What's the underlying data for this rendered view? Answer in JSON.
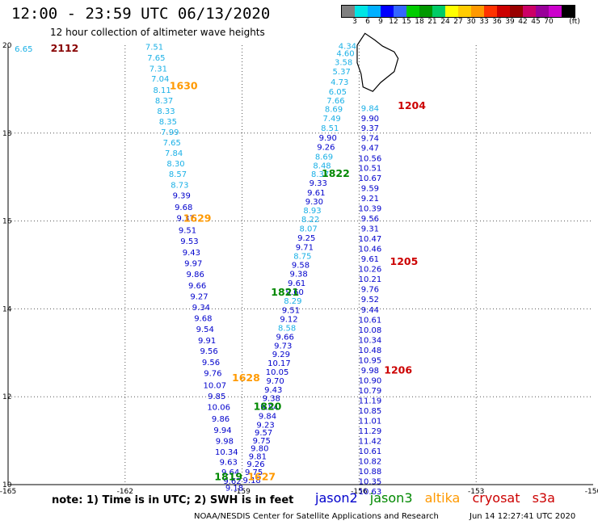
{
  "header": {
    "title": "12:00 - 23:59 UTC 06/13/2020",
    "subtitle": "12 hour collection of altimeter wave heights"
  },
  "color_scale": {
    "unit_label": "(ft)",
    "colors": [
      "#808080",
      "#00e5e5",
      "#00b0ff",
      "#0000ff",
      "#3366ff",
      "#00cc00",
      "#009900",
      "#00cc66",
      "#ffff00",
      "#ffcc00",
      "#ff9900",
      "#ff3300",
      "#cc0000",
      "#990000",
      "#cc0066",
      "#990099",
      "#cc00cc",
      "#000000"
    ],
    "labels": [
      "3",
      "6",
      "9",
      "12",
      "15",
      "18",
      "21",
      "24",
      "27",
      "30",
      "33",
      "36",
      "39",
      "42",
      "45",
      "70"
    ]
  },
  "axes": {
    "x_ticks": [
      "-165",
      "-162",
      "-159",
      "-156",
      "-153",
      "-150"
    ],
    "y_ticks": [
      "10",
      "12",
      "14",
      "16",
      "18",
      "20"
    ]
  },
  "colors": {
    "jason2": "#0000cc",
    "jason3": "#008800",
    "altika": "#ff9900",
    "cryosat": "#cc0000",
    "s3a": "#cc0000",
    "light": "#1ab0e6",
    "dark": "#0000cc",
    "grid": "#555555"
  },
  "pass_labels": [
    {
      "text": "2112",
      "color": "#880000",
      "lon": -163.55,
      "lat": 19.85
    },
    {
      "text": "1630",
      "color": "#ff9900",
      "lon": -160.5,
      "lat": 19.0
    },
    {
      "text": "1629",
      "color": "#ff9900",
      "lon": -160.15,
      "lat": 15.98
    },
    {
      "text": "1628",
      "color": "#ff9900",
      "lon": -158.9,
      "lat": 12.35
    },
    {
      "text": "1627",
      "color": "#ff9900",
      "lon": -158.5,
      "lat": 10.1
    },
    {
      "text": "1204",
      "color": "#cc0000",
      "lon": -154.65,
      "lat": 18.55
    },
    {
      "text": "1205",
      "color": "#cc0000",
      "lon": -154.85,
      "lat": 15.0
    },
    {
      "text": "1206",
      "color": "#cc0000",
      "lon": -155.0,
      "lat": 12.53
    },
    {
      "text": "1822",
      "color": "#008800",
      "lon": -156.6,
      "lat": 17.0
    },
    {
      "text": "1821",
      "color": "#008800",
      "lon": -157.9,
      "lat": 14.3
    },
    {
      "text": "1820",
      "color": "#008800",
      "lon": -158.35,
      "lat": 11.7
    },
    {
      "text": "1819",
      "color": "#008800",
      "lon": -159.35,
      "lat": 10.1
    }
  ],
  "tracks": [
    {
      "name": "track-1630-1629",
      "color": "#1ab0e6",
      "points": [
        {
          "lon": -161.25,
          "lat": 19.9,
          "v": "7.51"
        },
        {
          "lon": -161.2,
          "lat": 19.65,
          "v": "7.65"
        },
        {
          "lon": -161.15,
          "lat": 19.4,
          "v": "7.31"
        },
        {
          "lon": -161.1,
          "lat": 19.17,
          "v": "7.04"
        },
        {
          "lon": -161.05,
          "lat": 18.92,
          "v": "8.11"
        },
        {
          "lon": -161.0,
          "lat": 18.68,
          "v": "8.37"
        },
        {
          "lon": -160.95,
          "lat": 18.44,
          "v": "8.33"
        },
        {
          "lon": -160.9,
          "lat": 18.2,
          "v": "8.35"
        },
        {
          "lon": -160.85,
          "lat": 17.96,
          "v": "7.99"
        },
        {
          "lon": -160.8,
          "lat": 17.72,
          "v": "7.65"
        },
        {
          "lon": -160.75,
          "lat": 17.48,
          "v": "7.84"
        },
        {
          "lon": -160.7,
          "lat": 17.24,
          "v": "8.30"
        },
        {
          "lon": -160.65,
          "lat": 17.0,
          "v": "8.57"
        },
        {
          "lon": -160.6,
          "lat": 16.76,
          "v": "8.73"
        },
        {
          "lon": -160.55,
          "lat": 16.52,
          "v": "9.39",
          "c": "#0000cc"
        },
        {
          "lon": -160.5,
          "lat": 16.25,
          "v": "9.68",
          "c": "#0000cc"
        },
        {
          "lon": -160.45,
          "lat": 16.0,
          "v": "9.37",
          "c": "#0000cc"
        },
        {
          "lon": -160.4,
          "lat": 15.73,
          "v": "9.51",
          "c": "#0000cc"
        },
        {
          "lon": -160.35,
          "lat": 15.48,
          "v": "9.53",
          "c": "#0000cc"
        },
        {
          "lon": -160.3,
          "lat": 15.22,
          "v": "9.43",
          "c": "#0000cc"
        },
        {
          "lon": -160.25,
          "lat": 14.97,
          "v": "9.97",
          "c": "#0000cc"
        },
        {
          "lon": -160.2,
          "lat": 14.72,
          "v": "9.86",
          "c": "#0000cc"
        },
        {
          "lon": -160.15,
          "lat": 14.47,
          "v": "9.66",
          "c": "#0000cc"
        },
        {
          "lon": -160.1,
          "lat": 14.22,
          "v": "9.27",
          "c": "#0000cc"
        },
        {
          "lon": -160.05,
          "lat": 13.97,
          "v": "9.34",
          "c": "#0000cc"
        },
        {
          "lon": -160.0,
          "lat": 13.72,
          "v": "9.68",
          "c": "#0000cc"
        },
        {
          "lon": -159.95,
          "lat": 13.47,
          "v": "9.54",
          "c": "#0000cc"
        },
        {
          "lon": -159.9,
          "lat": 13.22,
          "v": "9.91",
          "c": "#0000cc"
        },
        {
          "lon": -159.85,
          "lat": 12.98,
          "v": "9.56",
          "c": "#0000cc"
        },
        {
          "lon": -159.8,
          "lat": 12.72,
          "v": "9.56",
          "c": "#0000cc"
        },
        {
          "lon": -159.75,
          "lat": 12.47,
          "v": "9.76",
          "c": "#0000cc"
        },
        {
          "lon": -159.7,
          "lat": 12.2,
          "v": "10.07",
          "c": "#0000cc"
        },
        {
          "lon": -159.65,
          "lat": 11.95,
          "v": "9.85",
          "c": "#0000cc"
        },
        {
          "lon": -159.6,
          "lat": 11.7,
          "v": "10.06",
          "c": "#0000cc"
        },
        {
          "lon": -159.55,
          "lat": 11.43,
          "v": "9.86",
          "c": "#0000cc"
        },
        {
          "lon": -159.5,
          "lat": 11.18,
          "v": "9.94",
          "c": "#0000cc"
        },
        {
          "lon": -159.45,
          "lat": 10.93,
          "v": "9.98",
          "c": "#0000cc"
        },
        {
          "lon": -159.4,
          "lat": 10.68,
          "v": "10.34",
          "c": "#0000cc"
        },
        {
          "lon": -159.35,
          "lat": 10.45,
          "v": "9.63",
          "c": "#0000cc"
        },
        {
          "lon": -159.3,
          "lat": 10.22,
          "v": "9.64",
          "c": "#0000cc"
        },
        {
          "lon": -159.25,
          "lat": 10.02,
          "v": "9.62",
          "c": "#0000cc"
        },
        {
          "lon": -159.2,
          "lat": 9.86,
          "v": "9.18",
          "c": "#0000cc"
        }
      ]
    },
    {
      "name": "track-1822-1819",
      "color": "#0000cc",
      "points": [
        {
          "lon": -156.3,
          "lat": 19.92,
          "v": "4.34",
          "c": "#1ab0e6"
        },
        {
          "lon": -156.35,
          "lat": 19.75,
          "v": "4.60",
          "c": "#1ab0e6"
        },
        {
          "lon": -156.4,
          "lat": 19.55,
          "v": "3.58",
          "c": "#1ab0e6"
        },
        {
          "lon": -156.45,
          "lat": 19.34,
          "v": "5.37",
          "c": "#1ab0e6"
        },
        {
          "lon": -156.5,
          "lat": 19.1,
          "v": "4.73",
          "c": "#1ab0e6"
        },
        {
          "lon": -156.55,
          "lat": 18.88,
          "v": "6.05",
          "c": "#1ab0e6"
        },
        {
          "lon": -156.6,
          "lat": 18.68,
          "v": "7.66",
          "c": "#1ab0e6"
        },
        {
          "lon": -156.65,
          "lat": 18.48,
          "v": "8.69",
          "c": "#1ab0e6"
        },
        {
          "lon": -156.7,
          "lat": 18.27,
          "v": "7.49",
          "c": "#1ab0e6"
        },
        {
          "lon": -156.75,
          "lat": 18.05,
          "v": "8.51",
          "c": "#1ab0e6"
        },
        {
          "lon": -156.8,
          "lat": 17.83,
          "v": "9.90"
        },
        {
          "lon": -156.85,
          "lat": 17.62,
          "v": "9.26"
        },
        {
          "lon": -156.9,
          "lat": 17.4,
          "v": "8.69",
          "c": "#1ab0e6"
        },
        {
          "lon": -156.95,
          "lat": 17.2,
          "v": "8.48",
          "c": "#1ab0e6"
        },
        {
          "lon": -157.0,
          "lat": 17.0,
          "v": "8.37",
          "c": "#1ab0e6"
        },
        {
          "lon": -157.05,
          "lat": 16.8,
          "v": "9.33"
        },
        {
          "lon": -157.1,
          "lat": 16.58,
          "v": "9.61"
        },
        {
          "lon": -157.15,
          "lat": 16.38,
          "v": "9.30"
        },
        {
          "lon": -157.2,
          "lat": 16.18,
          "v": "8.93",
          "c": "#1ab0e6"
        },
        {
          "lon": -157.25,
          "lat": 15.97,
          "v": "8.22",
          "c": "#1ab0e6"
        },
        {
          "lon": -157.3,
          "lat": 15.76,
          "v": "8.07",
          "c": "#1ab0e6"
        },
        {
          "lon": -157.35,
          "lat": 15.55,
          "v": "9.25"
        },
        {
          "lon": -157.4,
          "lat": 15.34,
          "v": "9.71"
        },
        {
          "lon": -157.45,
          "lat": 15.14,
          "v": "8.75",
          "c": "#1ab0e6"
        },
        {
          "lon": -157.5,
          "lat": 14.94,
          "v": "9.58"
        },
        {
          "lon": -157.55,
          "lat": 14.73,
          "v": "9.38"
        },
        {
          "lon": -157.6,
          "lat": 14.52,
          "v": "9.61"
        },
        {
          "lon": -157.65,
          "lat": 14.32,
          "v": "9.60"
        },
        {
          "lon": -157.7,
          "lat": 14.12,
          "v": "8.29",
          "c": "#1ab0e6"
        },
        {
          "lon": -157.75,
          "lat": 13.91,
          "v": "9.51"
        },
        {
          "lon": -157.8,
          "lat": 13.7,
          "v": "9.12"
        },
        {
          "lon": -157.85,
          "lat": 13.5,
          "v": "8.58",
          "c": "#1ab0e6"
        },
        {
          "lon": -157.9,
          "lat": 13.3,
          "v": "9.66"
        },
        {
          "lon": -157.95,
          "lat": 13.1,
          "v": "9.73"
        },
        {
          "lon": -158.0,
          "lat": 12.9,
          "v": "9.29"
        },
        {
          "lon": -158.05,
          "lat": 12.7,
          "v": "10.17"
        },
        {
          "lon": -158.1,
          "lat": 12.5,
          "v": "10.05"
        },
        {
          "lon": -158.15,
          "lat": 12.3,
          "v": "9.70"
        },
        {
          "lon": -158.2,
          "lat": 12.1,
          "v": "9.43"
        },
        {
          "lon": -158.25,
          "lat": 11.9,
          "v": "9.38"
        },
        {
          "lon": -158.3,
          "lat": 11.7,
          "v": "9.84"
        },
        {
          "lon": -158.35,
          "lat": 11.5,
          "v": "9.84"
        },
        {
          "lon": -158.4,
          "lat": 11.3,
          "v": "9.23"
        },
        {
          "lon": -158.45,
          "lat": 11.12,
          "v": "9.57"
        },
        {
          "lon": -158.5,
          "lat": 10.94,
          "v": "9.75"
        },
        {
          "lon": -158.55,
          "lat": 10.76,
          "v": "9.80"
        },
        {
          "lon": -158.6,
          "lat": 10.58,
          "v": "9.81"
        },
        {
          "lon": -158.65,
          "lat": 10.4,
          "v": "9.26"
        },
        {
          "lon": -158.7,
          "lat": 10.22,
          "v": "9.75"
        },
        {
          "lon": -158.75,
          "lat": 10.04,
          "v": "9.18"
        }
      ]
    },
    {
      "name": "track-1204-1206",
      "color": "#0000cc",
      "points": [
        {
          "lon": -155.72,
          "lat": 18.5,
          "v": "9.84",
          "c": "#1ab0e6"
        },
        {
          "lon": -155.72,
          "lat": 18.27,
          "v": "9.90"
        },
        {
          "lon": -155.72,
          "lat": 18.05,
          "v": "9.37"
        },
        {
          "lon": -155.72,
          "lat": 17.82,
          "v": "9.74"
        },
        {
          "lon": -155.72,
          "lat": 17.6,
          "v": "9.47"
        },
        {
          "lon": -155.72,
          "lat": 17.36,
          "v": "10.56"
        },
        {
          "lon": -155.72,
          "lat": 17.14,
          "v": "10.51"
        },
        {
          "lon": -155.72,
          "lat": 16.91,
          "v": "10.67"
        },
        {
          "lon": -155.72,
          "lat": 16.68,
          "v": "9.59"
        },
        {
          "lon": -155.72,
          "lat": 16.45,
          "v": "9.21"
        },
        {
          "lon": -155.72,
          "lat": 16.22,
          "v": "10.39"
        },
        {
          "lon": -155.72,
          "lat": 15.99,
          "v": "9.56"
        },
        {
          "lon": -155.72,
          "lat": 15.76,
          "v": "9.31"
        },
        {
          "lon": -155.72,
          "lat": 15.53,
          "v": "10.47"
        },
        {
          "lon": -155.72,
          "lat": 15.3,
          "v": "10.46"
        },
        {
          "lon": -155.72,
          "lat": 15.07,
          "v": "9.61"
        },
        {
          "lon": -155.72,
          "lat": 14.84,
          "v": "10.26"
        },
        {
          "lon": -155.72,
          "lat": 14.61,
          "v": "10.21"
        },
        {
          "lon": -155.72,
          "lat": 14.38,
          "v": "9.76"
        },
        {
          "lon": -155.72,
          "lat": 14.15,
          "v": "9.52"
        },
        {
          "lon": -155.72,
          "lat": 13.92,
          "v": "9.44"
        },
        {
          "lon": -155.72,
          "lat": 13.69,
          "v": "10.61"
        },
        {
          "lon": -155.72,
          "lat": 13.46,
          "v": "10.08"
        },
        {
          "lon": -155.72,
          "lat": 13.23,
          "v": "10.34"
        },
        {
          "lon": -155.72,
          "lat": 13.0,
          "v": "10.48"
        },
        {
          "lon": -155.72,
          "lat": 12.77,
          "v": "10.95"
        },
        {
          "lon": -155.72,
          "lat": 12.54,
          "v": "9.98"
        },
        {
          "lon": -155.72,
          "lat": 12.31,
          "v": "10.90"
        },
        {
          "lon": -155.72,
          "lat": 12.08,
          "v": "10.79"
        },
        {
          "lon": -155.72,
          "lat": 11.85,
          "v": "11.19"
        },
        {
          "lon": -155.72,
          "lat": 11.62,
          "v": "10.85"
        },
        {
          "lon": -155.72,
          "lat": 11.39,
          "v": "11.01"
        },
        {
          "lon": -155.72,
          "lat": 11.16,
          "v": "11.29"
        },
        {
          "lon": -155.72,
          "lat": 10.93,
          "v": "11.42"
        },
        {
          "lon": -155.72,
          "lat": 10.7,
          "v": "10.61"
        },
        {
          "lon": -155.72,
          "lat": 10.47,
          "v": "10.82"
        },
        {
          "lon": -155.72,
          "lat": 10.24,
          "v": "10.88"
        },
        {
          "lon": -155.72,
          "lat": 10.01,
          "v": "10.35"
        },
        {
          "lon": -155.72,
          "lat": 9.78,
          "v": "10.63"
        }
      ]
    },
    {
      "name": "track-2112",
      "color": "#1ab0e6",
      "points": [
        {
          "lon": -164.6,
          "lat": 19.85,
          "v": "6.65"
        }
      ]
    }
  ],
  "note": "note: 1) Time is in UTC; 2) SWH is in feet",
  "legend": {
    "jason2": "jason2",
    "jason3": "jason3",
    "altika": "altika",
    "cryosat": "cryosat",
    "s3a": "s3a"
  },
  "footer": {
    "credit": "NOAA/NESDIS Center for Satellite Applications and Research",
    "timestamp": "Jun 14 12:27:41 UTC 2020"
  }
}
